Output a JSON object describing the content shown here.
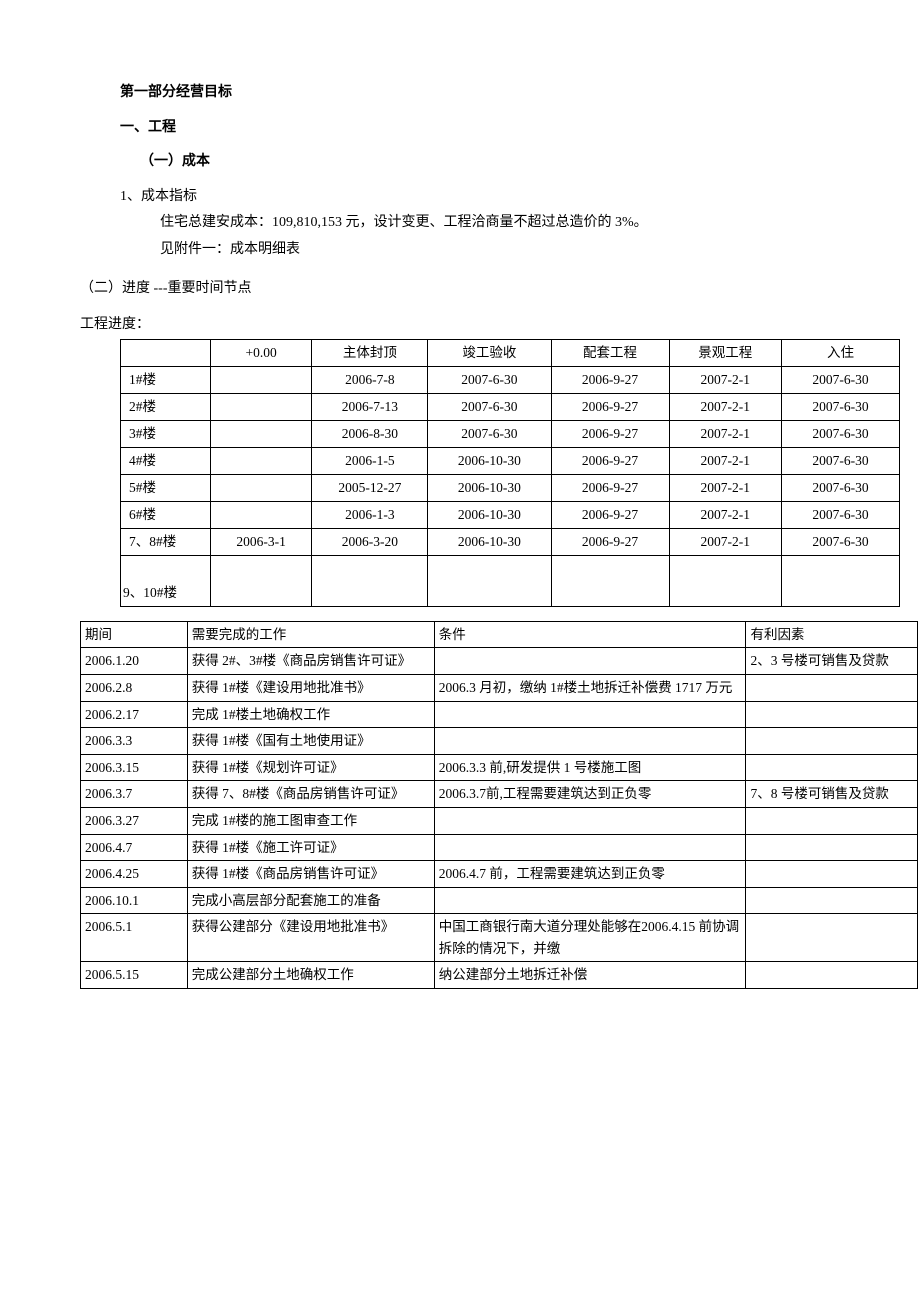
{
  "headings": {
    "part": "第一部分经营目标",
    "sec1": "一、工程",
    "sub1": "（一）成本",
    "cost_idx": "1、成本指标",
    "cost_line1": "住宅总建安成本：109,810,153 元，设计变更、工程洽商量不超过总造价的 3%。",
    "cost_line2": "见附件一：成本明细表",
    "sub2": "（二）进度 ---重要时间节点",
    "tlabel": "工程进度："
  },
  "schedule": {
    "columns": [
      "",
      "+0.00",
      "主体封顶",
      "竣工验收",
      "配套工程",
      "景观工程",
      "入住"
    ],
    "rows": [
      {
        "b": "1#楼",
        "c0": "",
        "c1": "2006-7-8",
        "c2": "2007-6-30",
        "c3": "2006-9-27",
        "c4": "2007-2-1",
        "c5": "2007-6-30"
      },
      {
        "b": "2#楼",
        "c0": "",
        "c1": "2006-7-13",
        "c2": "2007-6-30",
        "c3": "2006-9-27",
        "c4": "2007-2-1",
        "c5": "2007-6-30"
      },
      {
        "b": "3#楼",
        "c0": "",
        "c1": "2006-8-30",
        "c2": "2007-6-30",
        "c3": "2006-9-27",
        "c4": "2007-2-1",
        "c5": "2007-6-30"
      },
      {
        "b": "4#楼",
        "c0": "",
        "c1": "2006-1-5",
        "c2": "2006-10-30",
        "c3": "2006-9-27",
        "c4": "2007-2-1",
        "c5": "2007-6-30"
      },
      {
        "b": "5#楼",
        "c0": "",
        "c1": "2005-12-27",
        "c2": "2006-10-30",
        "c3": "2006-9-27",
        "c4": "2007-2-1",
        "c5": "2007-6-30"
      },
      {
        "b": "6#楼",
        "c0": "",
        "c1": "2006-1-3",
        "c2": "2006-10-30",
        "c3": "2006-9-27",
        "c4": "2007-2-1",
        "c5": "2007-6-30"
      },
      {
        "b": "7、8#楼",
        "c0": "2006-3-1",
        "c1": "2006-3-20",
        "c2": "2006-10-30",
        "c3": "2006-9-27",
        "c4": "2007-2-1",
        "c5": "2007-6-30"
      },
      {
        "b": "9、10#楼",
        "c0": "",
        "c1": "",
        "c2": "",
        "c3": "",
        "c4": "",
        "c5": "",
        "tall": true
      }
    ]
  },
  "tasks": {
    "columns": [
      "期间",
      "需要完成的工作",
      "条件",
      "有利因素"
    ],
    "rows": [
      {
        "a": "2006.1.20",
        "b": "获得 2#、3#楼《商品房销售许可证》",
        "c": "",
        "d": "2、3 号楼可销售及贷款"
      },
      {
        "a": "2006.2.8",
        "b": "获得 1#楼《建设用地批准书》",
        "c": "2006.3 月初，缴纳 1#楼土地拆迁补偿费 1717 万元",
        "d": ""
      },
      {
        "a": "2006.2.17",
        "b": "完成 1#楼土地确权工作",
        "c": "",
        "d": ""
      },
      {
        "a": "2006.3.3",
        "b": "获得 1#楼《国有土地使用证》",
        "c": "",
        "d": ""
      },
      {
        "a": "2006.3.15",
        "b": "获得 1#楼《规划许可证》",
        "c": "2006.3.3 前,研发提供 1 号楼施工图",
        "d": ""
      },
      {
        "a": "2006.3.7",
        "b": "获得 7、8#楼《商品房销售许可证》",
        "c": "2006.3.7前,工程需要建筑达到正负零",
        "d": "7、8 号楼可销售及贷款"
      },
      {
        "a": "2006.3.27",
        "b": "完成 1#楼的施工图审查工作",
        "c": "",
        "d": ""
      },
      {
        "a": "2006.4.7",
        "b": "获得 1#楼《施工许可证》",
        "c": "",
        "d": ""
      },
      {
        "a": "2006.4.25",
        "b": "获得 1#楼《商品房销售许可证》",
        "c": "2006.4.7 前，工程需要建筑达到正负零",
        "d": ""
      },
      {
        "a": "2006.10.1",
        "b": "完成小高层部分配套施工的准备",
        "c": "",
        "d": "",
        "tall": true
      },
      {
        "a": "2006.5.1",
        "b": "获得公建部分《建设用地批准书》",
        "c": "中国工商银行南大道分理处能够在2006.4.15 前协调拆除的情况下，并缴",
        "d": ""
      },
      {
        "a": "2006.5.15",
        "b": "完成公建部分土地确权工作",
        "c": "纳公建部分土地拆迁补偿",
        "d": ""
      }
    ]
  }
}
